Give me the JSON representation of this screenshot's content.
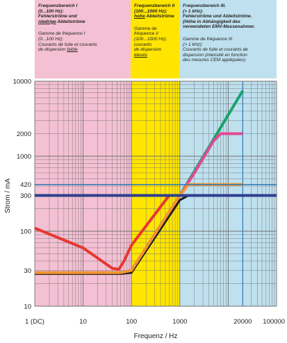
{
  "bands": [
    {
      "de_parts": [
        "Frequenzbereich I",
        "(0...100 Hz):",
        "Fehlerströme und",
        "niedrige",
        " Ableitströme"
      ],
      "fr_parts": [
        "Gamme de fréquence I",
        "(0...100 Hz):",
        "Courants de fuite et courants",
        "de dispersion ",
        "faible"
      ]
    },
    {
      "de_parts": [
        "Frequenzbereich II",
        "(100...1000 Hz):",
        "hohe",
        " Ableitströme"
      ],
      "fr_parts": [
        "Gamme de",
        "fréquence II",
        "(100...1000 Hz):",
        "courants",
        "de dispersion ",
        "élevés"
      ]
    },
    {
      "de_parts": [
        "Frequenzbereich III.",
        "(> 1 kHz):",
        "Fehlerströme und Ableitströme.",
        "(Höhe in Abhängigkeit des",
        "verwendeten EMV-Massenahmer."
      ],
      "fr_parts": [
        "Gamme de fréquence III",
        "(> 1 kHz):",
        "Courants de fuite et courants de",
        "dispersion (intensité en fonction",
        "des mesures CEM appliquées)"
      ]
    }
  ],
  "colors": {
    "band_pink": "#f4c0d3",
    "band_yellow": "#ffe500",
    "band_blue": "#bfe0ee",
    "grid": "#6f6f6f",
    "red": "#e8372e",
    "orange": "#f39430",
    "green": "#17a36b",
    "magenta": "#e04a93",
    "navy": "#2f3f8f",
    "black": "#1a1a1a",
    "blue_line": "#2a7ab8"
  },
  "chart_data": {
    "type": "line",
    "xlabel": "Frequenz / Hz",
    "ylabel": "Strom / mA",
    "xscale": "log",
    "yscale": "log",
    "xlim": [
      1,
      100000
    ],
    "ylim": [
      10,
      10000
    ],
    "grid": true,
    "x_tick_labels": [
      {
        "value": 1,
        "label": "1 (DC)"
      },
      {
        "value": 10,
        "label": "10"
      },
      {
        "value": 100,
        "label": "100"
      },
      {
        "value": 1000,
        "label": "1000"
      },
      {
        "value": 20000,
        "label": "20000"
      },
      {
        "value": 100000,
        "label": "100000"
      }
    ],
    "y_tick_labels": [
      {
        "value": 10,
        "label": "10"
      },
      {
        "value": 30,
        "label": "30"
      },
      {
        "value": 100,
        "label": "100"
      },
      {
        "value": 300,
        "label": "300"
      },
      {
        "value": 420,
        "label": "420"
      },
      {
        "value": 1000,
        "label": "1000"
      },
      {
        "value": 2000,
        "label": "2000"
      },
      {
        "value": 10000,
        "label": "10000"
      }
    ],
    "frequency_ranges": [
      {
        "from": 1,
        "to": 100,
        "color": "#f4c0d3"
      },
      {
        "from": 100,
        "to": 1000,
        "color": "#ffe500"
      },
      {
        "from": 1000,
        "to": 100000,
        "color": "#bfe0ee"
      }
    ],
    "vertical_markers": [
      20000
    ],
    "series": [
      {
        "color": "#17a36b",
        "width": 4,
        "points": [
          [
            1,
            28
          ],
          [
            60,
            28
          ],
          [
            100,
            30
          ],
          [
            1000,
            300
          ],
          [
            20000,
            7500
          ]
        ]
      },
      {
        "color": "#e04a93",
        "width": 4,
        "points": [
          [
            1,
            28
          ],
          [
            60,
            28
          ],
          [
            100,
            30
          ],
          [
            700,
            210
          ],
          [
            2000,
            600
          ],
          [
            5000,
            1600
          ],
          [
            7000,
            2000
          ],
          [
            20000,
            2000
          ]
        ]
      },
      {
        "color": "#1a1a1a",
        "width": 3,
        "points": [
          [
            1,
            27
          ],
          [
            60,
            27
          ],
          [
            100,
            28
          ],
          [
            1000,
            260
          ],
          [
            1500,
            300
          ],
          [
            100000,
            300
          ]
        ]
      },
      {
        "color": "#f39430",
        "width": 4,
        "points": [
          [
            1,
            28
          ],
          [
            60,
            28
          ],
          [
            100,
            30
          ],
          [
            1000,
            300
          ],
          [
            1500,
            420
          ],
          [
            20000,
            420
          ]
        ]
      },
      {
        "color": "#e8372e",
        "width": 4,
        "points": [
          [
            1,
            110
          ],
          [
            10,
            60
          ],
          [
            40,
            32
          ],
          [
            55,
            31
          ],
          [
            70,
            40
          ],
          [
            100,
            65
          ],
          [
            600,
            300
          ],
          [
            100000,
            300
          ]
        ]
      },
      {
        "color": "#2f3f8f",
        "width": 4,
        "points": [
          [
            1,
            300
          ],
          [
            100000,
            300
          ]
        ]
      },
      {
        "color": "#2a7ab8",
        "width": 1.5,
        "points": [
          [
            1,
            420
          ],
          [
            100000,
            420
          ]
        ]
      }
    ]
  }
}
